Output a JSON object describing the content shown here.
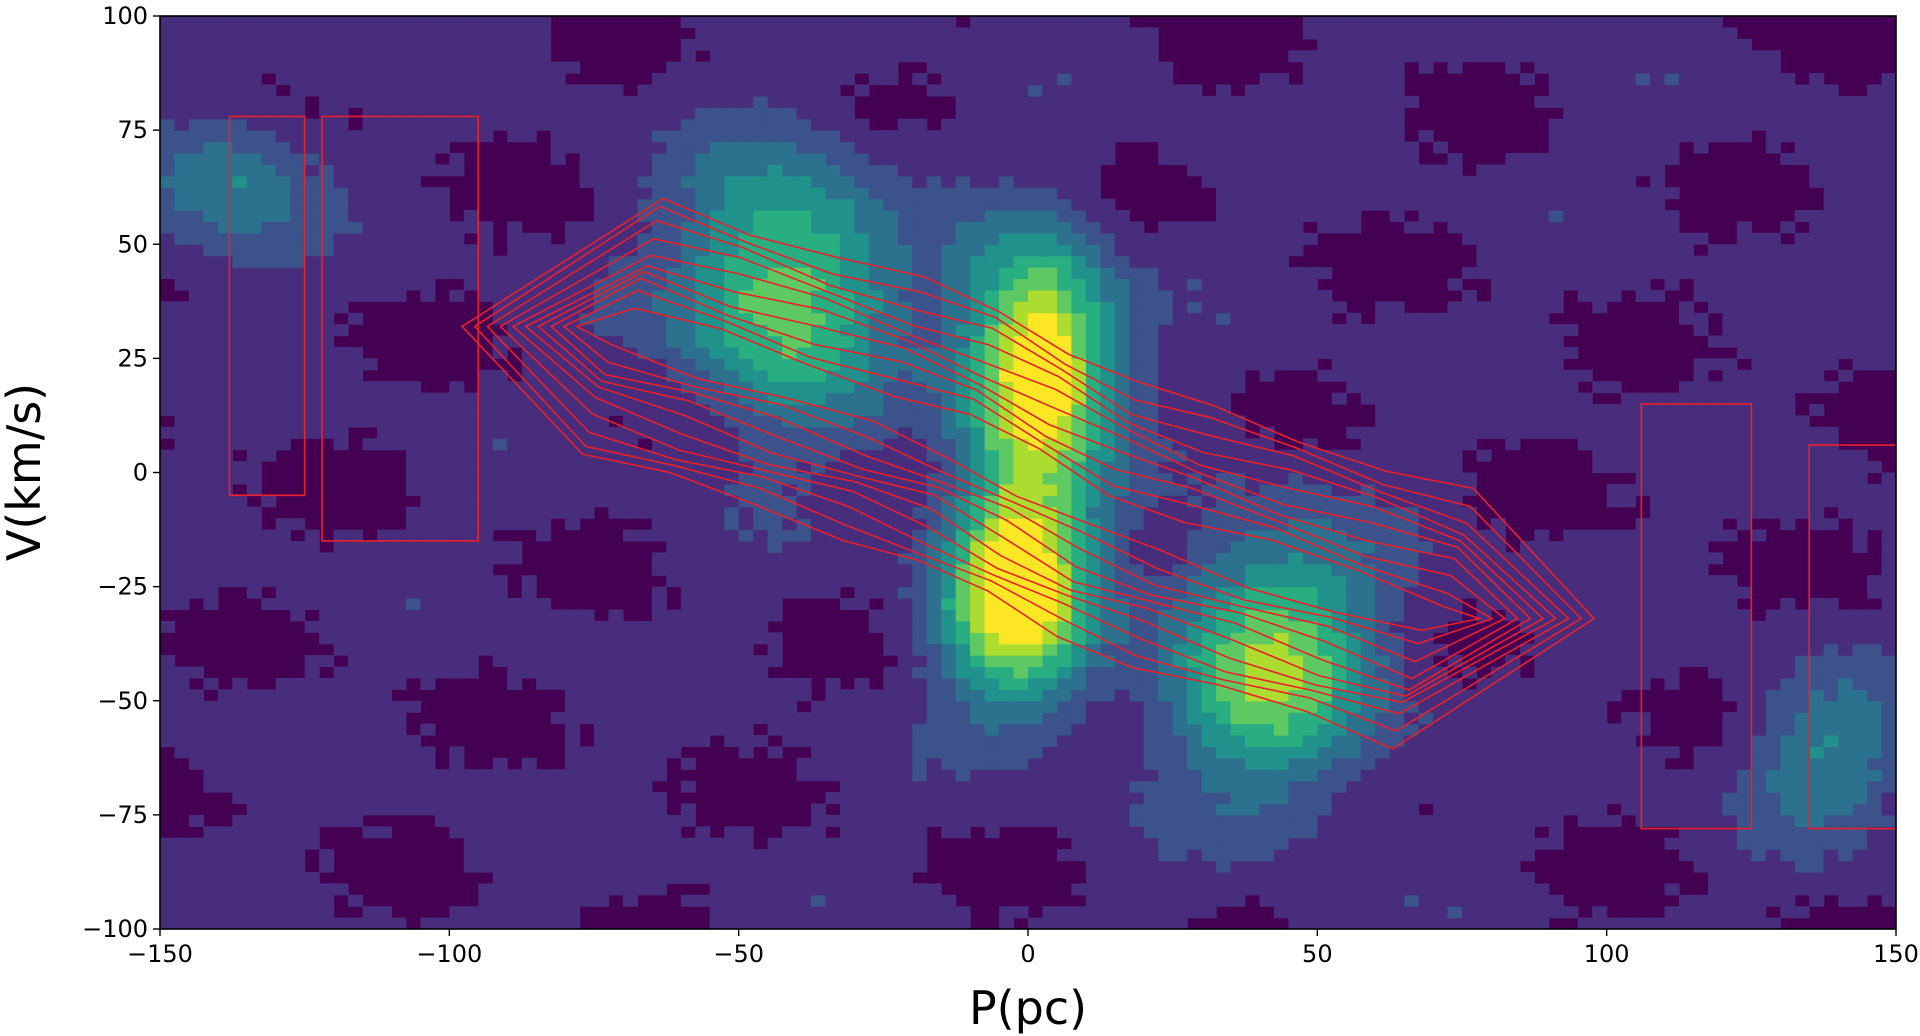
{
  "chart_data": {
    "type": "heatmap",
    "subtype": "filled-contour position-velocity diagram with red line-contour overlay",
    "title": "",
    "xlabel": "P(pc)",
    "ylabel": "V(km/s)",
    "xlim": [
      -150,
      150
    ],
    "ylim": [
      -100,
      100
    ],
    "xticks": [
      -150,
      -100,
      -50,
      0,
      50,
      100,
      150
    ],
    "yticks": [
      -100,
      -75,
      -50,
      -25,
      0,
      25,
      50,
      75,
      100
    ],
    "xtick_labels": [
      "−150",
      "−100",
      "−50",
      "0",
      "50",
      "100",
      "150"
    ],
    "ytick_labels": [
      "−100",
      "−75",
      "−50",
      "−25",
      "0",
      "25",
      "50",
      "75",
      "100"
    ],
    "grid": false,
    "legend": "none",
    "colormap": "viridis",
    "contour_color": "#e8212b",
    "filled_contour_colors": [
      "#440154",
      "#472d7b",
      "#3b528b",
      "#2c728e",
      "#21918c",
      "#28ae80",
      "#5ec962",
      "#addc30",
      "#fde725"
    ],
    "filled_components": [
      {
        "name": "upper-left lobe",
        "p": -42,
        "v": 40,
        "sigma_p": 13,
        "sigma_v": 20,
        "peak": 0.62
      },
      {
        "name": "upper-centre peak",
        "p": 2,
        "v": 25,
        "sigma_p": 9,
        "sigma_v": 18,
        "peak": 0.9
      },
      {
        "name": "lower-centre peak",
        "p": -2,
        "v": -25,
        "sigma_p": 9,
        "sigma_v": 18,
        "peak": 0.9
      },
      {
        "name": "lower-right lobe",
        "p": 42,
        "v": -42,
        "sigma_p": 13,
        "sigma_v": 20,
        "peak": 0.62
      },
      {
        "name": "far-left faint patch",
        "p": -138,
        "v": 62,
        "sigma_p": 10,
        "sigma_v": 12,
        "peak": 0.3
      },
      {
        "name": "far-right faint patch",
        "p": 138,
        "v": -62,
        "sigma_p": 10,
        "sigma_v": 12,
        "peak": 0.3
      }
    ],
    "line_contour_ridge": [
      {
        "p": -70,
        "v": 32
      },
      {
        "p": -55,
        "v": 26
      },
      {
        "p": -40,
        "v": 20
      },
      {
        "p": -25,
        "v": 14
      },
      {
        "p": -12,
        "v": 8
      },
      {
        "p": 0,
        "v": 0
      },
      {
        "p": 12,
        "v": -8
      },
      {
        "p": 25,
        "v": -14
      },
      {
        "p": 40,
        "v": -20
      },
      {
        "p": 55,
        "v": -26
      },
      {
        "p": 70,
        "v": -32
      }
    ],
    "line_contour_levels": 10
  }
}
